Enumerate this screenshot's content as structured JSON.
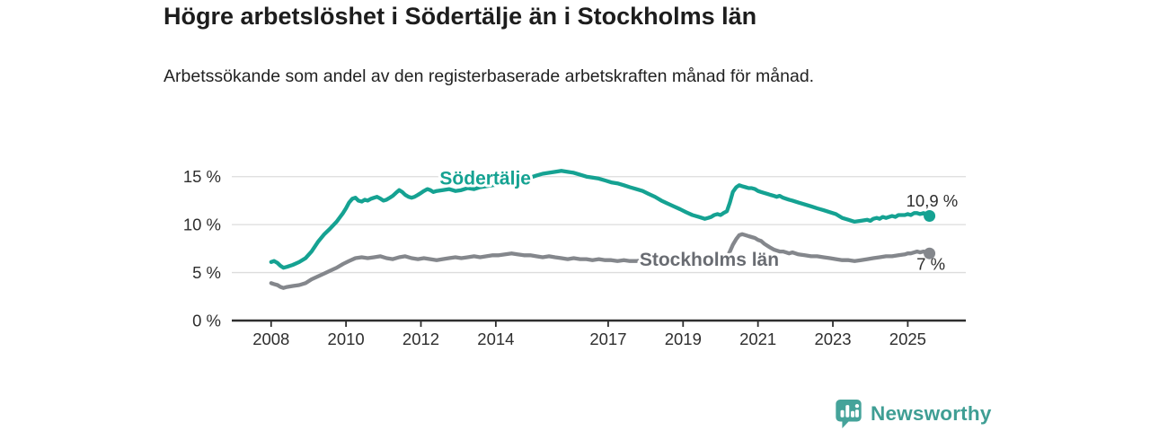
{
  "header": {
    "title": "Högre arbetslöshet i Södertälje än i Stockholms län",
    "subtitle": "Arbetssökande som andel av den registerbaserade arbetskraften månad för månad."
  },
  "footer": {
    "brand": "Newsworthy"
  },
  "colors": {
    "accent_teal": "#15a292",
    "line_gray": "#84878c",
    "label_gray": "#696c72",
    "text_dark": "#2e2e2e",
    "grid": "#dcdcdc",
    "axis": "#2e2e2e",
    "brand_teal": "#3f9e94",
    "logo_bubble": "#45a39a"
  },
  "chart_data": {
    "type": "line",
    "title": "Högre arbetslöshet i Södertälje än i Stockholms län",
    "subtitle": "Arbetssökande som andel av den registerbaserade arbetskraften månad för månad.",
    "xlabel": "",
    "ylabel": "",
    "grid": true,
    "legend_position": "inline-labels",
    "xlim": [
      2006.95,
      2026.55
    ],
    "ylim": [
      0,
      17.5
    ],
    "x_ticks": [
      2008,
      2010,
      2012,
      2014,
      2017,
      2019,
      2021,
      2023,
      2025
    ],
    "y_ticks": [
      0,
      5,
      10,
      15
    ],
    "y_tick_suffix": " %",
    "series": [
      {
        "name": "Södertälje",
        "slug": "sodertalje",
        "color": "#15a292",
        "label_color": "#15a292",
        "label_pos": [
          2013.72,
          14.2
        ],
        "end_label": "10,9 %",
        "end_label_pos": [
          2026.34,
          11.9
        ],
        "last_value": 10.9,
        "points": [
          [
            2008.0,
            6.1
          ],
          [
            2008.08,
            6.2
          ],
          [
            2008.17,
            6.0
          ],
          [
            2008.25,
            5.7
          ],
          [
            2008.33,
            5.5
          ],
          [
            2008.42,
            5.6
          ],
          [
            2008.58,
            5.8
          ],
          [
            2008.75,
            6.1
          ],
          [
            2008.92,
            6.5
          ],
          [
            2009.08,
            7.2
          ],
          [
            2009.25,
            8.2
          ],
          [
            2009.42,
            9.0
          ],
          [
            2009.58,
            9.6
          ],
          [
            2009.75,
            10.3
          ],
          [
            2009.92,
            11.2
          ],
          [
            2010.0,
            11.7
          ],
          [
            2010.08,
            12.3
          ],
          [
            2010.17,
            12.7
          ],
          [
            2010.25,
            12.8
          ],
          [
            2010.33,
            12.5
          ],
          [
            2010.42,
            12.4
          ],
          [
            2010.5,
            12.6
          ],
          [
            2010.58,
            12.5
          ],
          [
            2010.67,
            12.7
          ],
          [
            2010.75,
            12.8
          ],
          [
            2010.83,
            12.9
          ],
          [
            2010.92,
            12.7
          ],
          [
            2011.0,
            12.5
          ],
          [
            2011.08,
            12.6
          ],
          [
            2011.17,
            12.8
          ],
          [
            2011.25,
            13.0
          ],
          [
            2011.33,
            13.3
          ],
          [
            2011.42,
            13.6
          ],
          [
            2011.5,
            13.4
          ],
          [
            2011.58,
            13.1
          ],
          [
            2011.67,
            12.9
          ],
          [
            2011.75,
            12.8
          ],
          [
            2011.83,
            12.9
          ],
          [
            2011.92,
            13.1
          ],
          [
            2012.0,
            13.3
          ],
          [
            2012.08,
            13.5
          ],
          [
            2012.17,
            13.7
          ],
          [
            2012.25,
            13.6
          ],
          [
            2012.33,
            13.4
          ],
          [
            2012.42,
            13.5
          ],
          [
            2012.58,
            13.6
          ],
          [
            2012.75,
            13.7
          ],
          [
            2012.92,
            13.5
          ],
          [
            2013.08,
            13.6
          ],
          [
            2013.25,
            13.8
          ],
          [
            2013.42,
            13.7
          ],
          [
            2013.58,
            13.9
          ],
          [
            2013.75,
            14.0
          ],
          [
            2013.92,
            14.1
          ],
          [
            2014.08,
            14.2
          ],
          [
            2014.25,
            14.4
          ],
          [
            2014.42,
            14.3
          ],
          [
            2014.58,
            14.5
          ],
          [
            2014.75,
            14.7
          ],
          [
            2014.92,
            14.9
          ],
          [
            2015.08,
            15.1
          ],
          [
            2015.25,
            15.3
          ],
          [
            2015.42,
            15.4
          ],
          [
            2015.58,
            15.5
          ],
          [
            2015.75,
            15.6
          ],
          [
            2015.92,
            15.5
          ],
          [
            2016.08,
            15.4
          ],
          [
            2016.25,
            15.2
          ],
          [
            2016.42,
            15.0
          ],
          [
            2016.58,
            14.9
          ],
          [
            2016.75,
            14.8
          ],
          [
            2016.92,
            14.6
          ],
          [
            2017.08,
            14.4
          ],
          [
            2017.25,
            14.3
          ],
          [
            2017.42,
            14.1
          ],
          [
            2017.58,
            13.9
          ],
          [
            2017.75,
            13.7
          ],
          [
            2017.92,
            13.5
          ],
          [
            2018.08,
            13.2
          ],
          [
            2018.25,
            12.9
          ],
          [
            2018.42,
            12.5
          ],
          [
            2018.58,
            12.2
          ],
          [
            2018.75,
            11.9
          ],
          [
            2018.92,
            11.6
          ],
          [
            2019.08,
            11.3
          ],
          [
            2019.25,
            11.0
          ],
          [
            2019.42,
            10.8
          ],
          [
            2019.58,
            10.6
          ],
          [
            2019.67,
            10.7
          ],
          [
            2019.75,
            10.8
          ],
          [
            2019.83,
            11.0
          ],
          [
            2019.92,
            11.1
          ],
          [
            2020.0,
            11.0
          ],
          [
            2020.08,
            11.2
          ],
          [
            2020.17,
            11.4
          ],
          [
            2020.25,
            12.3
          ],
          [
            2020.33,
            13.4
          ],
          [
            2020.42,
            13.9
          ],
          [
            2020.5,
            14.1
          ],
          [
            2020.58,
            14.0
          ],
          [
            2020.67,
            13.9
          ],
          [
            2020.75,
            13.8
          ],
          [
            2020.83,
            13.8
          ],
          [
            2020.92,
            13.7
          ],
          [
            2021.0,
            13.5
          ],
          [
            2021.08,
            13.4
          ],
          [
            2021.17,
            13.3
          ],
          [
            2021.25,
            13.2
          ],
          [
            2021.33,
            13.1
          ],
          [
            2021.42,
            13.0
          ],
          [
            2021.5,
            12.9
          ],
          [
            2021.58,
            13.0
          ],
          [
            2021.67,
            12.8
          ],
          [
            2021.75,
            12.7
          ],
          [
            2021.83,
            12.6
          ],
          [
            2021.92,
            12.5
          ],
          [
            2022.08,
            12.3
          ],
          [
            2022.25,
            12.1
          ],
          [
            2022.42,
            11.9
          ],
          [
            2022.58,
            11.7
          ],
          [
            2022.75,
            11.5
          ],
          [
            2022.92,
            11.3
          ],
          [
            2023.08,
            11.1
          ],
          [
            2023.25,
            10.7
          ],
          [
            2023.42,
            10.5
          ],
          [
            2023.5,
            10.4
          ],
          [
            2023.58,
            10.3
          ],
          [
            2023.75,
            10.4
          ],
          [
            2023.92,
            10.5
          ],
          [
            2024.0,
            10.4
          ],
          [
            2024.08,
            10.6
          ],
          [
            2024.17,
            10.7
          ],
          [
            2024.25,
            10.6
          ],
          [
            2024.33,
            10.8
          ],
          [
            2024.42,
            10.7
          ],
          [
            2024.58,
            10.9
          ],
          [
            2024.67,
            10.8
          ],
          [
            2024.75,
            11.0
          ],
          [
            2024.92,
            11.0
          ],
          [
            2025.0,
            11.1
          ],
          [
            2025.08,
            11.0
          ],
          [
            2025.17,
            11.2
          ],
          [
            2025.25,
            11.2
          ],
          [
            2025.33,
            11.1
          ],
          [
            2025.42,
            11.2
          ],
          [
            2025.5,
            11.1
          ],
          [
            2025.58,
            10.9
          ]
        ]
      },
      {
        "name": "Stockholms län",
        "slug": "stockholms-lan",
        "color": "#84878c",
        "label_color": "#696c72",
        "label_pos": [
          2019.7,
          5.7
        ],
        "end_label": "7 %",
        "end_label_pos": [
          2026.0,
          5.3
        ],
        "last_value": 7.0,
        "points": [
          [
            2008.0,
            3.9
          ],
          [
            2008.08,
            3.8
          ],
          [
            2008.17,
            3.7
          ],
          [
            2008.25,
            3.5
          ],
          [
            2008.33,
            3.4
          ],
          [
            2008.42,
            3.5
          ],
          [
            2008.58,
            3.6
          ],
          [
            2008.75,
            3.7
          ],
          [
            2008.92,
            3.9
          ],
          [
            2009.08,
            4.3
          ],
          [
            2009.25,
            4.6
          ],
          [
            2009.42,
            4.9
          ],
          [
            2009.58,
            5.2
          ],
          [
            2009.75,
            5.5
          ],
          [
            2009.92,
            5.9
          ],
          [
            2010.08,
            6.2
          ],
          [
            2010.25,
            6.5
          ],
          [
            2010.42,
            6.6
          ],
          [
            2010.58,
            6.5
          ],
          [
            2010.75,
            6.6
          ],
          [
            2010.92,
            6.7
          ],
          [
            2011.08,
            6.5
          ],
          [
            2011.25,
            6.4
          ],
          [
            2011.42,
            6.6
          ],
          [
            2011.58,
            6.7
          ],
          [
            2011.75,
            6.5
          ],
          [
            2011.92,
            6.4
          ],
          [
            2012.08,
            6.5
          ],
          [
            2012.25,
            6.4
          ],
          [
            2012.42,
            6.3
          ],
          [
            2012.58,
            6.4
          ],
          [
            2012.75,
            6.5
          ],
          [
            2012.92,
            6.6
          ],
          [
            2013.08,
            6.5
          ],
          [
            2013.25,
            6.6
          ],
          [
            2013.42,
            6.7
          ],
          [
            2013.58,
            6.6
          ],
          [
            2013.75,
            6.7
          ],
          [
            2013.92,
            6.8
          ],
          [
            2014.08,
            6.8
          ],
          [
            2014.25,
            6.9
          ],
          [
            2014.42,
            7.0
          ],
          [
            2014.58,
            6.9
          ],
          [
            2014.75,
            6.8
          ],
          [
            2014.92,
            6.8
          ],
          [
            2015.08,
            6.7
          ],
          [
            2015.25,
            6.6
          ],
          [
            2015.42,
            6.7
          ],
          [
            2015.58,
            6.6
          ],
          [
            2015.75,
            6.5
          ],
          [
            2015.92,
            6.4
          ],
          [
            2016.08,
            6.5
          ],
          [
            2016.25,
            6.4
          ],
          [
            2016.42,
            6.4
          ],
          [
            2016.58,
            6.3
          ],
          [
            2016.75,
            6.4
          ],
          [
            2016.92,
            6.3
          ],
          [
            2017.08,
            6.3
          ],
          [
            2017.25,
            6.2
          ],
          [
            2017.42,
            6.3
          ],
          [
            2017.58,
            6.2
          ],
          [
            2017.75,
            6.2
          ],
          [
            2017.92,
            6.3
          ],
          [
            2018.08,
            6.2
          ],
          [
            2018.25,
            6.2
          ],
          [
            2018.42,
            6.3
          ],
          [
            2018.58,
            6.2
          ],
          [
            2018.75,
            6.3
          ],
          [
            2018.92,
            6.3
          ],
          [
            2019.08,
            6.3
          ],
          [
            2019.25,
            6.4
          ],
          [
            2019.42,
            6.4
          ],
          [
            2019.58,
            6.5
          ],
          [
            2019.75,
            6.5
          ],
          [
            2019.92,
            6.5
          ],
          [
            2020.08,
            6.5
          ],
          [
            2020.17,
            6.6
          ],
          [
            2020.25,
            7.2
          ],
          [
            2020.33,
            7.9
          ],
          [
            2020.42,
            8.5
          ],
          [
            2020.5,
            8.9
          ],
          [
            2020.58,
            9.0
          ],
          [
            2020.67,
            8.9
          ],
          [
            2020.75,
            8.8
          ],
          [
            2020.83,
            8.7
          ],
          [
            2020.92,
            8.6
          ],
          [
            2021.0,
            8.4
          ],
          [
            2021.08,
            8.3
          ],
          [
            2021.17,
            8.0
          ],
          [
            2021.25,
            7.8
          ],
          [
            2021.33,
            7.6
          ],
          [
            2021.42,
            7.4
          ],
          [
            2021.5,
            7.3
          ],
          [
            2021.58,
            7.2
          ],
          [
            2021.67,
            7.2
          ],
          [
            2021.75,
            7.1
          ],
          [
            2021.83,
            7.0
          ],
          [
            2021.92,
            7.1
          ],
          [
            2022.08,
            6.9
          ],
          [
            2022.25,
            6.8
          ],
          [
            2022.42,
            6.7
          ],
          [
            2022.58,
            6.7
          ],
          [
            2022.75,
            6.6
          ],
          [
            2022.92,
            6.5
          ],
          [
            2023.08,
            6.4
          ],
          [
            2023.25,
            6.3
          ],
          [
            2023.42,
            6.3
          ],
          [
            2023.58,
            6.2
          ],
          [
            2023.75,
            6.3
          ],
          [
            2023.92,
            6.4
          ],
          [
            2024.08,
            6.5
          ],
          [
            2024.25,
            6.6
          ],
          [
            2024.42,
            6.7
          ],
          [
            2024.58,
            6.7
          ],
          [
            2024.75,
            6.8
          ],
          [
            2024.92,
            6.9
          ],
          [
            2025.0,
            7.0
          ],
          [
            2025.08,
            7.0
          ],
          [
            2025.17,
            7.1
          ],
          [
            2025.25,
            7.2
          ],
          [
            2025.33,
            7.1
          ],
          [
            2025.42,
            7.2
          ],
          [
            2025.5,
            7.1
          ],
          [
            2025.58,
            7.0
          ]
        ]
      }
    ]
  }
}
